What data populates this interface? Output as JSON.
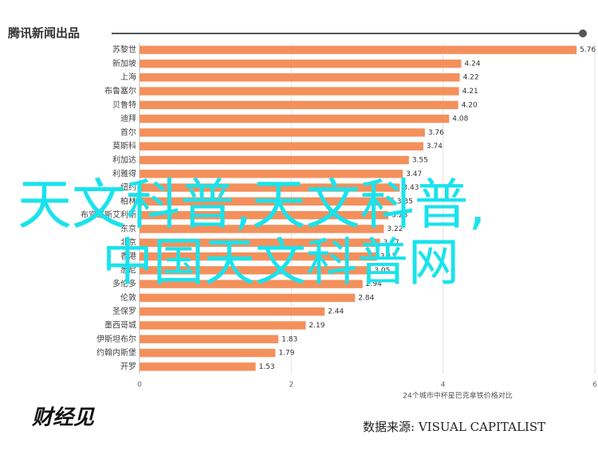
{
  "header": {
    "logo": "腾讯新闻出品"
  },
  "chart_data": {
    "type": "barh",
    "categories": [
      "苏黎世",
      "新加坡",
      "上海",
      "布鲁塞尔",
      "贝鲁特",
      "迪拜",
      "首尔",
      "莫斯科",
      "利加达",
      "利雅得",
      "纽约",
      "柏林",
      "布宜诺斯艾利斯",
      "东京",
      "北京",
      "香港",
      "悉尼",
      "多伦多",
      "伦敦",
      "圣保罗",
      "墨西哥城",
      "伊斯坦布尔",
      "约翰内斯堡",
      "开罗"
    ],
    "values": [
      5.76,
      4.24,
      4.22,
      4.21,
      4.2,
      4.08,
      3.76,
      3.74,
      3.55,
      3.47,
      3.43,
      3.35,
      3.28,
      3.22,
      3.17,
      3.13,
      3.05,
      2.94,
      2.84,
      2.44,
      2.19,
      1.83,
      1.79,
      1.53
    ],
    "value_labels": [
      "5.76",
      "4.24",
      "4.22",
      "4.21",
      "4.20",
      "4.08",
      "3.76",
      "3.74",
      "3.55",
      "3.47",
      "3.43",
      "3.35",
      "3.28",
      "3.22",
      "3.17",
      "3.13",
      "3.05",
      "2.94",
      "2.84",
      "2.44",
      "2.19",
      "1.83",
      "1.79",
      "1.53"
    ],
    "color": "#f4905c",
    "xlim": [
      0,
      6
    ],
    "xticks": [
      0,
      2,
      4,
      6
    ],
    "xlabel": "24个城市中杯星巴克拿铁价格对比"
  },
  "source": "数据来源: VISUAL CAPITALIST",
  "brand": "财经见",
  "overlay": {
    "line1": "天文科普,天文科普,",
    "line2": "中国天文科普网"
  }
}
